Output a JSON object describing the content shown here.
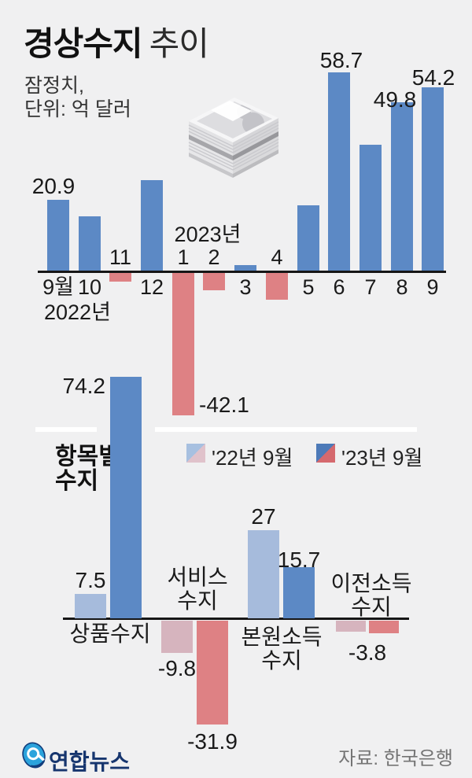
{
  "header": {
    "title_bold": "경상수지",
    "title_rest": "추이",
    "subtitle_line1": "잠정치,",
    "subtitle_line2": "단위: 억 달러"
  },
  "section_label": {
    "line1": "항목별",
    "line2": "수지"
  },
  "legend": {
    "items": [
      {
        "label": "'22년 9월",
        "positive_color": "#a7c0e0",
        "negative_color": "#e0c2cb"
      },
      {
        "label": "'23년 9월",
        "positive_color": "#4d7ab8",
        "negative_color": "#d5696e"
      }
    ]
  },
  "footer": {
    "agency": "연합뉴스",
    "source": "자료: 한국은행"
  },
  "colors": {
    "background": "#f0f0f1",
    "bar_blue": "#5c89c5",
    "bar_red": "#de8184",
    "bar_light_blue": "#a6bbdc",
    "bar_light_pink": "#d6b4be",
    "axis": "#161616",
    "source_text": "#747474",
    "logo_navy": "#16356e",
    "logo_blue": "#2ba3dc"
  },
  "chart_data": [
    {
      "id": "monthly-current-account",
      "type": "bar",
      "title": "경상수지 추이",
      "note": "잠정치",
      "unit": "억 달러",
      "categories": [
        "2022-09",
        "2022-10",
        "2022-11",
        "2022-12",
        "2023-01",
        "2023-02",
        "2023-03",
        "2023-04",
        "2023-05",
        "2023-06",
        "2023-07",
        "2023-08",
        "2023-09"
      ],
      "tick_labels": [
        "9월",
        "10",
        "11",
        "12",
        "1",
        "2",
        "3",
        "4",
        "5",
        "6",
        "7",
        "8",
        "9"
      ],
      "values": [
        20.9,
        16.0,
        -2.6,
        26.8,
        -42.1,
        -5.2,
        1.6,
        -7.9,
        19.3,
        58.7,
        37.3,
        49.8,
        54.2
      ],
      "value_labels": [
        "20.9",
        null,
        null,
        null,
        "-42.1",
        null,
        null,
        null,
        null,
        "58.7",
        null,
        "49.8",
        "54.2"
      ],
      "year_markers": {
        "left": "2022년",
        "right": "2023년"
      },
      "positive_color": "#5c89c5",
      "negative_color": "#de8184",
      "grid": false
    },
    {
      "id": "balance-by-component",
      "type": "grouped_bar",
      "categories": [
        "상품수지",
        "서비스수지",
        "본원소득수지",
        "이전소득수지"
      ],
      "category_display_lines": [
        [
          "상품수지"
        ],
        [
          "서비스",
          "수지"
        ],
        [
          "본원소득",
          "수지"
        ],
        [
          "이전소득",
          "수지"
        ]
      ],
      "series": [
        {
          "name": "'22년 9월",
          "values": [
            7.5,
            -9.8,
            27,
            -3.5
          ]
        },
        {
          "name": "'23년 9월",
          "values": [
            74.2,
            -31.9,
            15.7,
            -3.8
          ]
        }
      ],
      "value_labels": [
        [
          "7.5",
          "-9.8",
          "27",
          null
        ],
        [
          "74.2",
          "-31.9",
          "15.7",
          "-3.8"
        ]
      ],
      "series_colors": [
        {
          "positive": "#a6bbdc",
          "negative": "#d6b4be"
        },
        {
          "positive": "#5c89c5",
          "negative": "#de8184"
        }
      ],
      "legend_position": "top",
      "grid": false
    }
  ]
}
